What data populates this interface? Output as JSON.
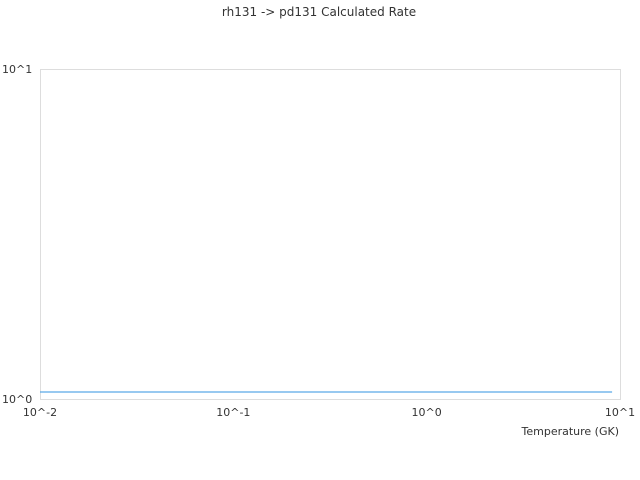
{
  "chart_data": {
    "type": "line",
    "title": "rh131 -> pd131 Calculated Rate",
    "xlabel": "Temperature (GK)",
    "ylabel": "",
    "xscale": "log",
    "yscale": "log",
    "xlim": [
      0.01,
      10
    ],
    "ylim": [
      1,
      10
    ],
    "xticks": [
      {
        "value": 0.01,
        "label": "10^-2"
      },
      {
        "value": 0.1,
        "label": "10^-1"
      },
      {
        "value": 1,
        "label": "10^0"
      },
      {
        "value": 10,
        "label": "10^1"
      }
    ],
    "yticks": [
      {
        "value": 1,
        "label": "10^0"
      },
      {
        "value": 10,
        "label": "10^1"
      }
    ],
    "grid": false,
    "legend": "none",
    "series": [
      {
        "color": "#5aa9e6",
        "x": [
          0.01,
          0.1,
          1,
          9.1
        ],
        "y": [
          1.05,
          1.05,
          1.05,
          1.05
        ]
      }
    ]
  }
}
